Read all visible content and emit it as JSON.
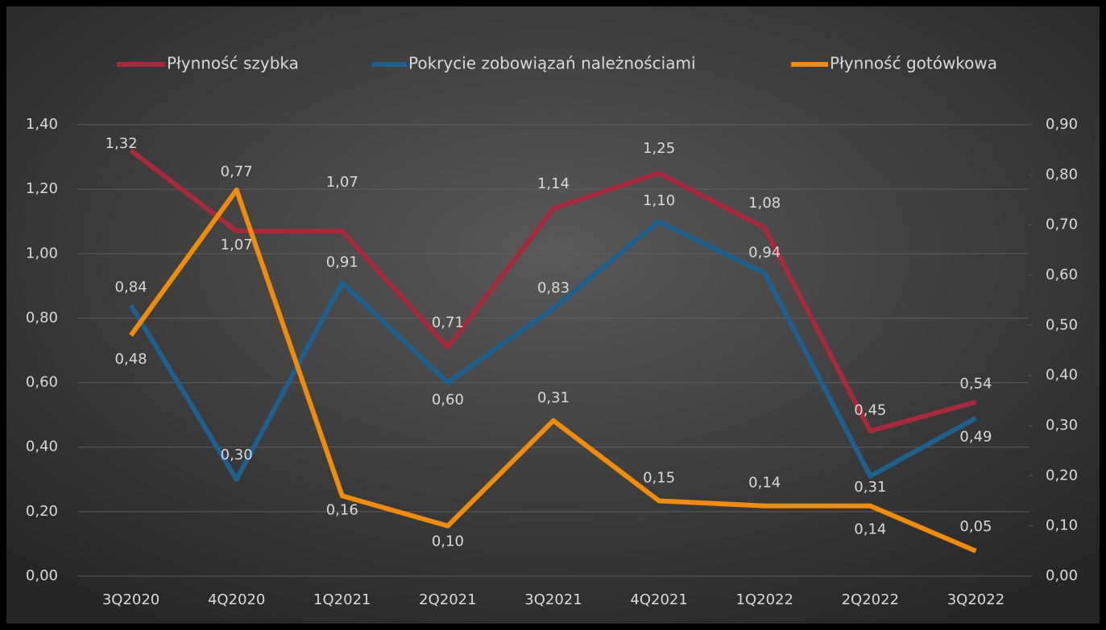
{
  "chart_data": {
    "type": "line",
    "categories": [
      "3Q2020",
      "4Q2020",
      "1Q2021",
      "2Q2021",
      "3Q2021",
      "4Q2021",
      "1Q2022",
      "2Q2022",
      "3Q2022"
    ],
    "series": [
      {
        "name": "Płynność szybka",
        "color": "#a52a3b",
        "values": [
          1.32,
          1.07,
          1.07,
          0.71,
          1.14,
          1.25,
          1.08,
          0.45,
          0.54
        ],
        "value_labels": [
          "1,32",
          "1,07",
          "1,07",
          "0,71",
          "1,14",
          "1,25",
          "1,08",
          "0,45",
          "0,54"
        ]
      },
      {
        "name": "Pokrycie zobowiązań należnościami",
        "color": "#1f5f8b",
        "values": [
          0.84,
          0.3,
          0.91,
          0.6,
          0.83,
          1.1,
          0.94,
          0.31,
          0.49
        ],
        "value_labels": [
          "0,84",
          "0,30",
          "0,91",
          "0,60",
          "0,83",
          "1,10",
          "0,94",
          "0,31",
          "0,49"
        ]
      },
      {
        "name": "Płynność gotówkowa",
        "color": "#f08c0c",
        "axis": "y2",
        "values": [
          0.48,
          0.77,
          0.16,
          0.1,
          0.31,
          0.15,
          0.14,
          0.14,
          0.05
        ],
        "value_labels": [
          "0,48",
          "0,77",
          "0,16",
          "0,10",
          "0,31",
          "0,15",
          "0,14",
          "0,14",
          "0,05"
        ]
      }
    ],
    "ylim": [
      0,
      1.4
    ],
    "yticks": [
      {
        "value": 0,
        "label": "0,00"
      },
      {
        "value": 0.2,
        "label": "0,20"
      },
      {
        "value": 0.4,
        "label": "0,40"
      },
      {
        "value": 0.6,
        "label": "0,60"
      },
      {
        "value": 0.8,
        "label": "0,80"
      },
      {
        "value": 1.0,
        "label": "1,00"
      },
      {
        "value": 1.2,
        "label": "1,20"
      },
      {
        "value": 1.4,
        "label": "1,40"
      }
    ],
    "y2lim": [
      0,
      0.9
    ],
    "y2ticks": [
      {
        "value": 0,
        "label": "0,00"
      },
      {
        "value": 0.1,
        "label": "0,10"
      },
      {
        "value": 0.2,
        "label": "0,20"
      },
      {
        "value": 0.3,
        "label": "0,30"
      },
      {
        "value": 0.4,
        "label": "0,40"
      },
      {
        "value": 0.5,
        "label": "0,50"
      },
      {
        "value": 0.6,
        "label": "0,60"
      },
      {
        "value": 0.7,
        "label": "0,70"
      },
      {
        "value": 0.8,
        "label": "0,80"
      },
      {
        "value": 0.9,
        "label": "0,90"
      }
    ],
    "grid": true,
    "legend": "top"
  }
}
